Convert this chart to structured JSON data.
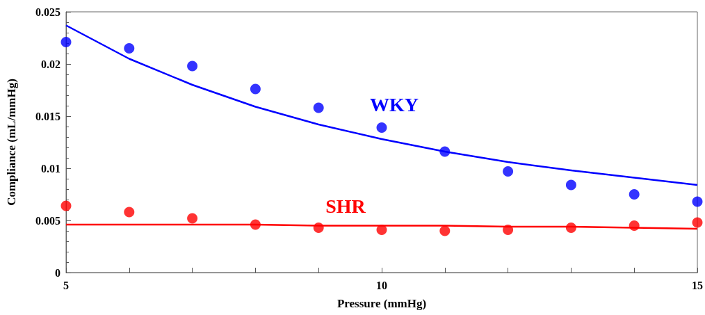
{
  "chart_data": {
    "type": "scatter",
    "xlabel": "Pressure (mmHg)",
    "ylabel": "Compliance (mL/mmHg)",
    "x": [
      5,
      6,
      7,
      8,
      9,
      10,
      11,
      12,
      13,
      14,
      15
    ],
    "series": [
      {
        "name": "WKY",
        "color": "#0000ff",
        "marker": "circle",
        "values": [
          0.0221,
          0.0215,
          0.0198,
          0.0176,
          0.0158,
          0.0139,
          0.0116,
          0.0097,
          0.0084,
          0.0075,
          0.0068
        ]
      },
      {
        "name": "SHR",
        "color": "#ff0000",
        "marker": "circle",
        "values": [
          0.0064,
          0.0058,
          0.0052,
          0.0046,
          0.0043,
          0.0041,
          0.004,
          0.0041,
          0.0043,
          0.0045,
          0.0048
        ]
      },
      {
        "color": "#0000ff",
        "type": "line",
        "marker": "none",
        "line_style": "solid",
        "values": [
          0.0237,
          0.0205,
          0.018,
          0.0159,
          0.0142,
          0.0128,
          0.0116,
          0.0106,
          0.0098,
          0.0091,
          0.0084
        ]
      },
      {
        "color": "#ff0000",
        "type": "line",
        "marker": "none",
        "line_style": "solid",
        "values": [
          0.0046,
          0.0046,
          0.0046,
          0.0046,
          0.0045,
          0.0045,
          0.0045,
          0.0044,
          0.0044,
          0.0043,
          0.0042
        ]
      }
    ],
    "xlim": [
      5,
      15
    ],
    "xticks": [
      5,
      {
        "value": 6,
        "label": null
      },
      {
        "value": 7,
        "label": null
      },
      {
        "value": 8,
        "label": null
      },
      {
        "value": 9,
        "label": null
      },
      10,
      {
        "value": 11,
        "label": null
      },
      {
        "value": 12,
        "label": null
      },
      {
        "value": 13,
        "label": null
      },
      {
        "value": 14,
        "label": null
      },
      15
    ],
    "ylim": [
      0,
      0.025
    ],
    "yticks": [
      0,
      0.005,
      0.01,
      0.015,
      0.02,
      0.025
    ],
    "legend": false,
    "grid": false
  }
}
